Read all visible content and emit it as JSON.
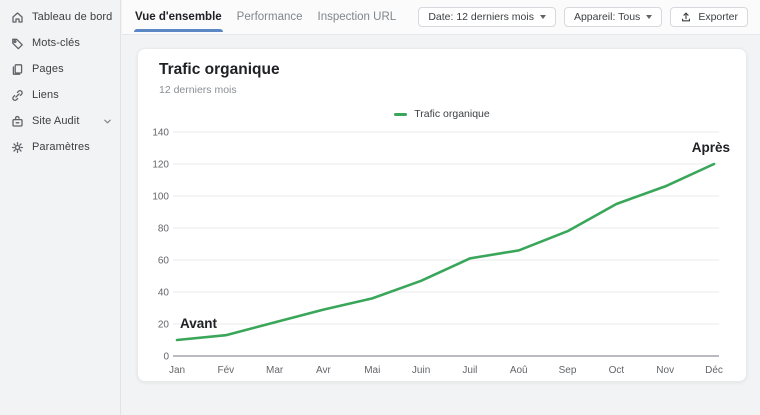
{
  "sidebar": {
    "items": [
      {
        "label": "Tableau de bord",
        "icon": "home-icon"
      },
      {
        "label": "Mots-clés",
        "icon": "tag-icon"
      },
      {
        "label": "Pages",
        "icon": "pages-icon"
      },
      {
        "label": "Liens",
        "icon": "link-icon"
      },
      {
        "label": "Site Audit",
        "icon": "site-audit-icon",
        "expandable": true
      },
      {
        "label": "Paramètres",
        "icon": "gear-icon"
      }
    ]
  },
  "topbar": {
    "tabs": [
      {
        "label": "Vue d'ensemble",
        "active": true
      },
      {
        "label": "Performance",
        "active": false
      },
      {
        "label": "Inspection URL",
        "active": false
      }
    ],
    "controls": {
      "date_filter": "Date: 12 derniers mois",
      "device_filter": "Appareil: Tous",
      "export_label": "Exporter"
    }
  },
  "card": {
    "title": "Trafic organique",
    "subtitle": "12 derniers mois",
    "legend": "Trafic organique"
  },
  "chart_data": {
    "type": "line",
    "title": "Trafic organique",
    "x": [
      "Jan",
      "Fév",
      "Mar",
      "Avr",
      "Mai",
      "Juin",
      "Juil",
      "Aoû",
      "Sep",
      "Oct",
      "Nov",
      "Déc"
    ],
    "series": [
      {
        "name": "Trafic organique",
        "color": "#3aa65a",
        "values": [
          10,
          13,
          21,
          29,
          36,
          47,
          61,
          66,
          78,
          95,
          106,
          120
        ]
      }
    ],
    "ylim": [
      0,
      140
    ],
    "yticks": [
      0,
      20,
      40,
      60,
      80,
      100,
      120,
      140
    ],
    "grid": true,
    "legend_position": "top-center",
    "annotations": [
      {
        "text": "Avant",
        "position": "start"
      },
      {
        "text": "Après",
        "position": "end"
      }
    ]
  },
  "colors": {
    "accent_blue": "#5b87c5",
    "line_green": "#3aa65a",
    "grid": "#ebebeb",
    "axis": "#8f9296"
  }
}
